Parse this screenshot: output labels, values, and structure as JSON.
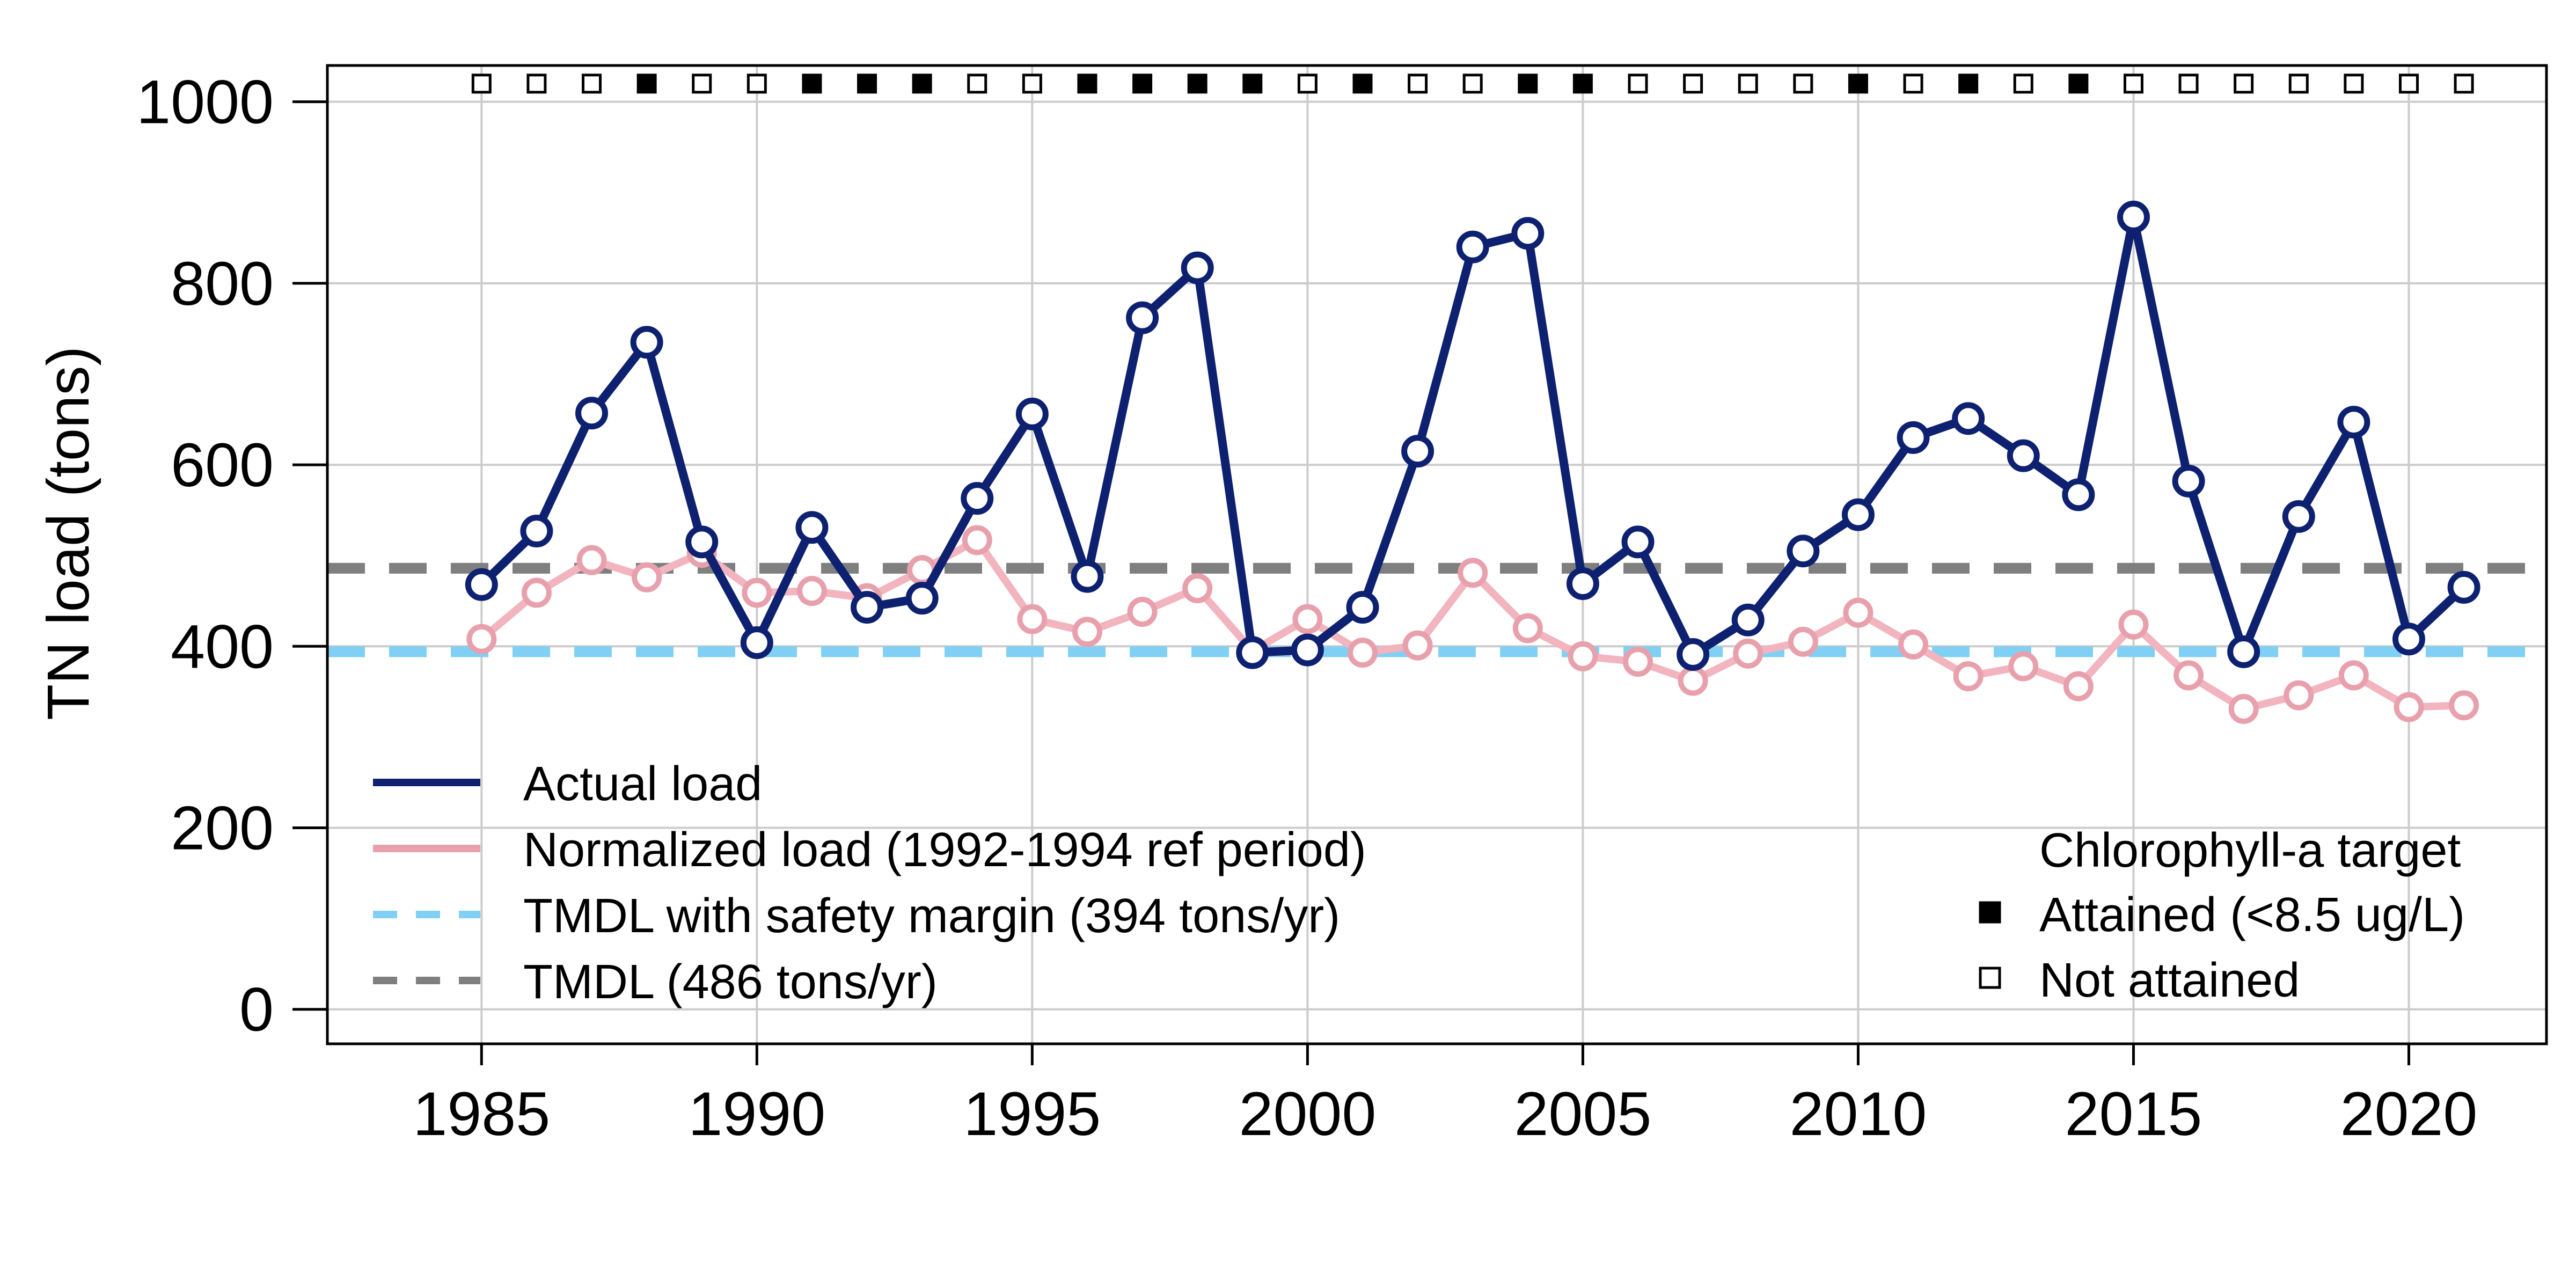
{
  "chart_data": {
    "type": "line",
    "ylabel": "TN load (tons)",
    "xlim": [
      1982.2,
      2022.5
    ],
    "ylim": [
      -38,
      1040
    ],
    "x_ticks": [
      1985,
      1990,
      1995,
      2000,
      2005,
      2010,
      2015,
      2020
    ],
    "y_ticks": [
      0,
      200,
      400,
      600,
      800,
      1000
    ],
    "grid": true,
    "x": [
      1985,
      1986,
      1987,
      1988,
      1989,
      1990,
      1991,
      1992,
      1993,
      1994,
      1995,
      1996,
      1997,
      1998,
      1999,
      2000,
      2001,
      2002,
      2003,
      2004,
      2005,
      2006,
      2007,
      2008,
      2009,
      2010,
      2011,
      2012,
      2013,
      2014,
      2015,
      2016,
      2017,
      2018,
      2019,
      2020,
      2021
    ],
    "series": [
      {
        "name": "Actual load",
        "color": "#0d2170",
        "values": [
          468,
          527,
          657,
          735,
          515,
          404,
          531,
          443,
          453,
          563,
          656,
          477,
          762,
          817,
          393,
          396,
          443,
          615,
          840,
          855,
          469,
          515,
          391,
          429,
          505,
          545,
          630,
          651,
          610,
          567,
          873,
          582,
          394,
          543,
          647,
          408,
          465
        ]
      },
      {
        "name": "Normalized load (1992-1994 ref period)",
        "color": "#f2b4be",
        "marker_color": "#e8a0ad",
        "values": [
          408,
          459,
          495,
          476,
          503,
          459,
          461,
          453,
          484,
          517,
          430,
          416,
          438,
          464,
          395,
          430,
          393,
          401,
          481,
          420,
          389,
          383,
          362,
          392,
          405,
          437,
          402,
          367,
          378,
          356,
          424,
          368,
          331,
          346,
          368,
          333,
          335
        ]
      }
    ],
    "reference_lines": [
      {
        "name": "TMDL with safety margin (394 tons/yr)",
        "value": 394,
        "color": "#80d0f5"
      },
      {
        "name": "TMDL (486 tons/yr)",
        "value": 486,
        "color": "#7f7f7f"
      }
    ],
    "chlorophyll_target": {
      "title": "Chlorophyll-a target",
      "attained_label": "Attained (<8.5 ug/L)",
      "not_attained_label": "Not attained",
      "y_position": 1020,
      "attained": [
        0,
        0,
        0,
        1,
        0,
        0,
        1,
        1,
        1,
        0,
        0,
        1,
        1,
        1,
        1,
        0,
        1,
        0,
        0,
        1,
        1,
        0,
        0,
        0,
        0,
        1,
        0,
        1,
        0,
        1,
        0,
        0,
        0,
        0,
        0,
        0,
        0
      ]
    },
    "legend": {
      "placement": "bottom-left",
      "items": [
        "Actual load",
        "Normalized load (1992-1994 ref period)",
        "TMDL with safety margin (394 tons/yr)",
        "TMDL (486 tons/yr)"
      ]
    }
  }
}
